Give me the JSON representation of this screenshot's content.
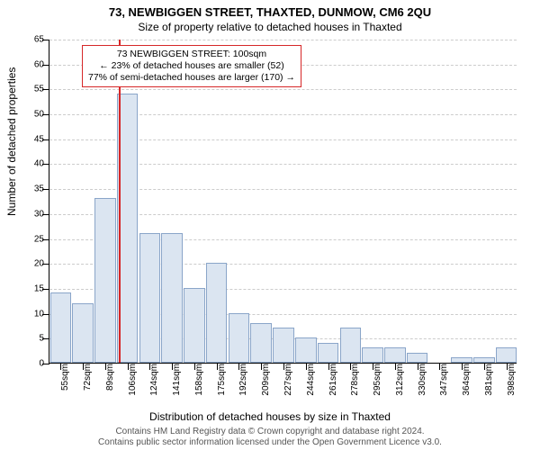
{
  "title": "73, NEWBIGGEN STREET, THAXTED, DUNMOW, CM6 2QU",
  "subtitle": "Size of property relative to detached houses in Thaxted",
  "ylabel": "Number of detached properties",
  "xlabel": "Distribution of detached houses by size in Thaxted",
  "footer_line1": "Contains HM Land Registry data © Crown copyright and database right 2024.",
  "footer_line2": "Contains public sector information licensed under the Open Government Licence v3.0.",
  "chart": {
    "type": "histogram",
    "ylim": [
      0,
      65
    ],
    "ytick_step": 5,
    "bar_fill": "#dbe5f1",
    "bar_border": "#8aa5c9",
    "grid_color": "#cccccc",
    "background": "#ffffff",
    "marker_color": "#d62728",
    "marker_x": 100,
    "categories": [
      "55sqm",
      "72sqm",
      "89sqm",
      "106sqm",
      "124sqm",
      "141sqm",
      "158sqm",
      "175sqm",
      "192sqm",
      "209sqm",
      "227sqm",
      "244sqm",
      "261sqm",
      "278sqm",
      "295sqm",
      "312sqm",
      "330sqm",
      "347sqm",
      "364sqm",
      "381sqm",
      "398sqm"
    ],
    "x_values": [
      55,
      72,
      89,
      106,
      124,
      141,
      158,
      175,
      192,
      209,
      227,
      244,
      261,
      278,
      295,
      312,
      330,
      347,
      364,
      381,
      398
    ],
    "values": [
      14,
      12,
      33,
      54,
      26,
      26,
      15,
      20,
      10,
      8,
      7,
      5,
      4,
      7,
      3,
      3,
      2,
      0,
      1,
      1,
      3
    ],
    "bar_width_ratio": 0.95
  },
  "annotation": {
    "line1": "73 NEWBIGGEN STREET: 100sqm",
    "line2": "← 23% of detached houses are smaller (52)",
    "line3": "77% of semi-detached houses are larger (170) →"
  }
}
